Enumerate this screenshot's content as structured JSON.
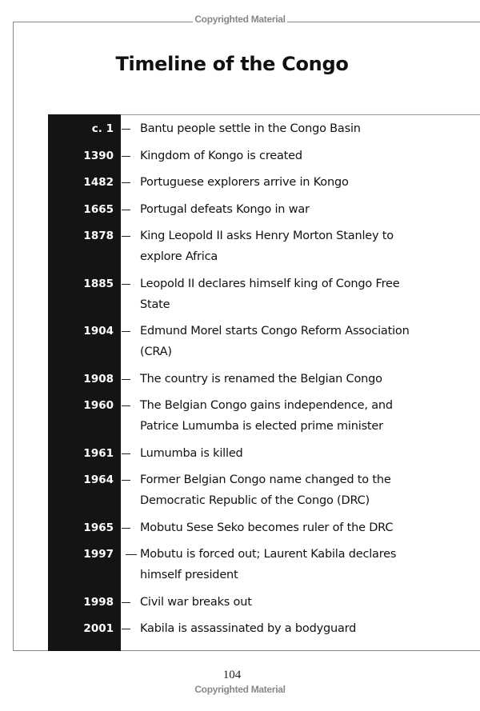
{
  "watermark": "Copyrighted Material",
  "title": "Timeline of the Congo",
  "entries": [
    {
      "year": "c. 1",
      "text": "Bantu people settle in the Congo Basin"
    },
    {
      "year": "1390",
      "text": "Kingdom of Kongo is created"
    },
    {
      "year": "1482",
      "text": "Portuguese explorers arrive in Kongo"
    },
    {
      "year": "1665",
      "text": "Portugal defeats Kongo in war"
    },
    {
      "year": "1878",
      "text": "King Leopold II asks Henry Morton Stanley to explore Africa"
    },
    {
      "year": "1885",
      "text": "Leopold II declares himself king of Congo Free State"
    },
    {
      "year": "1904",
      "text": "Edmund Morel starts Congo Reform Association (CRA)"
    },
    {
      "year": "1908",
      "text": "The country is renamed the Belgian Congo"
    },
    {
      "year": "1960",
      "text": "The Belgian Congo gains independence, and Patrice Lumumba is elected prime minister"
    },
    {
      "year": "1961",
      "text": "Lumumba is killed"
    },
    {
      "year": "1964",
      "text": "Former Belgian Congo name changed to the Democratic Republic of the Congo (DRC)"
    },
    {
      "year": "1965",
      "text": "Mobutu Sese Seko becomes ruler of the DRC"
    },
    {
      "year": "1997",
      "text": "Mobutu is forced out; Laurent Kabila declares himself president"
    },
    {
      "year": "1998",
      "text": "Civil war breaks out"
    },
    {
      "year": "2001",
      "text": "Kabila is assassinated by a bodyguard"
    }
  ],
  "page_number": "104"
}
